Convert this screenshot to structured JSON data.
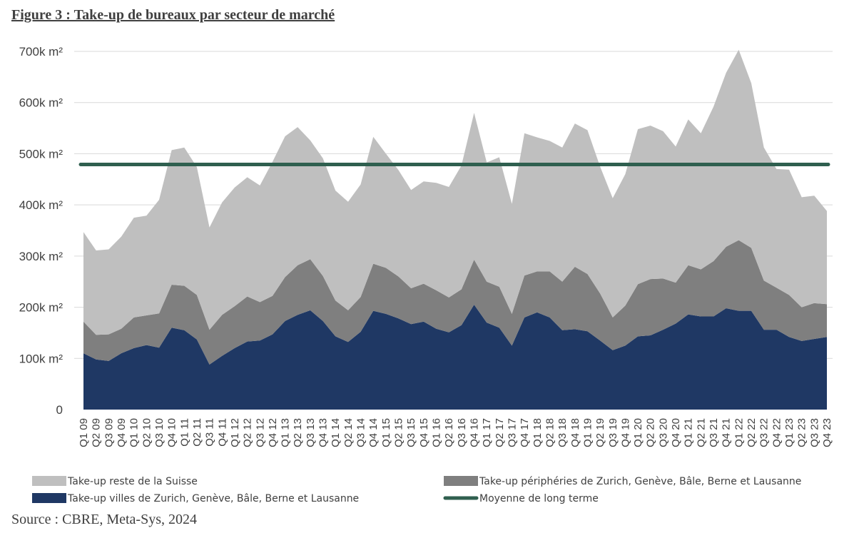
{
  "figure_title": "Figure 3 : Take-up de bureaux par secteur de marché",
  "source": "Source : CBRE, Meta-Sys, 2024",
  "chart_data": {
    "type": "area",
    "stacked": true,
    "y_unit": "m²",
    "ylim": [
      0,
      700000
    ],
    "yticks": [
      0,
      100000,
      200000,
      300000,
      400000,
      500000,
      600000,
      700000
    ],
    "ytick_labels": [
      "0",
      "100k m²",
      "200k m²",
      "300k m²",
      "400k m²",
      "500k m²",
      "600k m²",
      "700k m²"
    ],
    "grid": true,
    "legend_position": "bottom",
    "categories": [
      "Q1 09",
      "Q2 09",
      "Q3 09",
      "Q4 09",
      "Q1 10",
      "Q2 10",
      "Q3 10",
      "Q4 10",
      "Q1 11",
      "Q2 11",
      "Q3 11",
      "Q4 11",
      "Q1 12",
      "Q2 12",
      "Q3 12",
      "Q4 12",
      "Q1 13",
      "Q2 13",
      "Q3 13",
      "Q4 13",
      "Q1 14",
      "Q2 14",
      "Q3 14",
      "Q4 14",
      "Q1 15",
      "Q2 15",
      "Q3 15",
      "Q4 15",
      "Q1 16",
      "Q2 16",
      "Q3 16",
      "Q4 16",
      "Q1 17",
      "Q2 17",
      "Q3 17",
      "Q4 17",
      "Q1 18",
      "Q2 18",
      "Q3 18",
      "Q4 18",
      "Q1 19",
      "Q2 19",
      "Q3 19",
      "Q4 19",
      "Q1 20",
      "Q2 20",
      "Q3 20",
      "Q4 20",
      "Q1 21",
      "Q2 21",
      "Q3 21",
      "Q4 21",
      "Q1 22",
      "Q2 22",
      "Q3 22",
      "Q4 22",
      "Q1 23",
      "Q2 23",
      "Q3 23",
      "Q4 23"
    ],
    "series": [
      {
        "name": "Take-up villes de Zurich, Genève, Bâle, Berne et Lausanne",
        "color": "#1f3864",
        "values": [
          110000,
          98000,
          95000,
          110000,
          120000,
          126000,
          121000,
          160000,
          155000,
          137000,
          88000,
          105000,
          120000,
          133000,
          135000,
          147000,
          173000,
          185000,
          194000,
          173000,
          143000,
          132000,
          152000,
          193000,
          187000,
          178000,
          167000,
          172000,
          158000,
          151000,
          165000,
          205000,
          170000,
          160000,
          125000,
          180000,
          190000,
          180000,
          155000,
          157000,
          153000,
          135000,
          116000,
          125000,
          143000,
          145000,
          156000,
          168000,
          186000,
          182000,
          182000,
          198000,
          193000,
          193000,
          156000,
          156000,
          142000,
          134000,
          138000,
          142000
        ]
      },
      {
        "name": "Take-up périphéries de Zurich, Genève, Bâle, Berne et Lausanne",
        "color": "#7f7f7f",
        "values": [
          62000,
          48000,
          52000,
          48000,
          60000,
          58000,
          67000,
          84000,
          87000,
          87000,
          68000,
          80000,
          82000,
          88000,
          75000,
          75000,
          86000,
          97000,
          100000,
          88000,
          70000,
          62000,
          68000,
          92000,
          90000,
          82000,
          70000,
          74000,
          75000,
          68000,
          70000,
          88000,
          80000,
          80000,
          62000,
          82000,
          80000,
          90000,
          95000,
          122000,
          112000,
          92000,
          64000,
          78000,
          102000,
          110000,
          100000,
          80000,
          96000,
          92000,
          108000,
          120000,
          138000,
          123000,
          96000,
          82000,
          82000,
          66000,
          70000,
          64000
        ]
      },
      {
        "name": "Take-up reste de la Suisse",
        "color": "#bfbfbf",
        "values": [
          175000,
          165000,
          166000,
          180000,
          195000,
          195000,
          222000,
          263000,
          270000,
          250000,
          200000,
          220000,
          232000,
          233000,
          228000,
          262000,
          275000,
          270000,
          232000,
          230000,
          215000,
          212000,
          220000,
          248000,
          223000,
          208000,
          192000,
          200000,
          210000,
          216000,
          242000,
          287000,
          233000,
          253000,
          215000,
          278000,
          262000,
          255000,
          262000,
          280000,
          281000,
          248000,
          233000,
          257000,
          303000,
          300000,
          288000,
          266000,
          285000,
          266000,
          302000,
          340000,
          372000,
          322000,
          260000,
          232000,
          245000,
          215000,
          210000,
          182000
        ]
      },
      {
        "name": "Moyenne de long terme",
        "type": "line",
        "color": "#2f5f4f",
        "value": 479000
      }
    ]
  }
}
